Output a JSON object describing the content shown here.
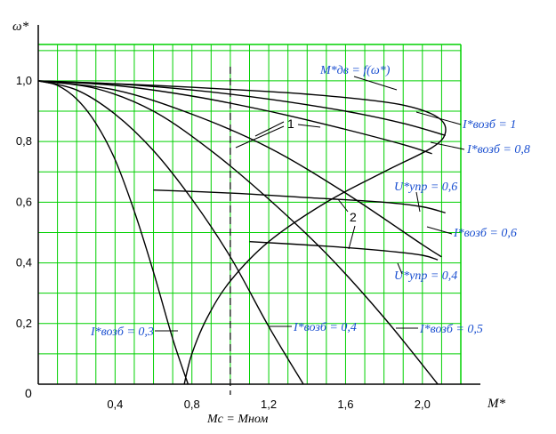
{
  "chart_data": {
    "type": "line",
    "x_ticks": [
      "0,4",
      "0,8",
      "1,2",
      "1,6",
      "2,0"
    ],
    "y_ticks": [
      "0,2",
      "0,4",
      "0,6",
      "0,8",
      "1,0"
    ],
    "origin_label": "0",
    "xlabel": "M*",
    "ylabel": "ω*",
    "xlim": [
      0,
      2.2
    ],
    "ylim": [
      0,
      1.12
    ],
    "grid": true,
    "grid_color": "#00d000",
    "vline": {
      "x": 1.0,
      "label": "Mc = Mном"
    },
    "series": [
      {
        "name": "I*возб = 0,3",
        "label": "I*возб = 0,3",
        "color": "#000000",
        "points": [
          [
            0,
            1.0
          ],
          [
            0.1,
            0.985
          ],
          [
            0.2,
            0.94
          ],
          [
            0.3,
            0.86
          ],
          [
            0.4,
            0.74
          ],
          [
            0.5,
            0.57
          ],
          [
            0.6,
            0.37
          ],
          [
            0.7,
            0.15
          ],
          [
            0.78,
            0.0
          ]
        ]
      },
      {
        "name": "I*возб = 0,4",
        "label": "I*возб = 0,4",
        "color": "#000000",
        "points": [
          [
            0,
            1.0
          ],
          [
            0.2,
            0.97
          ],
          [
            0.4,
            0.89
          ],
          [
            0.6,
            0.77
          ],
          [
            0.8,
            0.61
          ],
          [
            1.0,
            0.42
          ],
          [
            1.2,
            0.19
          ],
          [
            1.38,
            0.0
          ]
        ]
      },
      {
        "name": "I*возб = 0,5",
        "label": "I*возб = 0,5",
        "color": "#000000",
        "points": [
          [
            0,
            1.0
          ],
          [
            0.3,
            0.975
          ],
          [
            0.6,
            0.9
          ],
          [
            0.9,
            0.77
          ],
          [
            1.2,
            0.61
          ],
          [
            1.5,
            0.43
          ],
          [
            1.8,
            0.22
          ],
          [
            2.08,
            0.0
          ]
        ]
      },
      {
        "name": "I*возб = 0,6",
        "label": "I*возб = 0,6",
        "color": "#000000",
        "points": [
          [
            0,
            1.0
          ],
          [
            0.4,
            0.97
          ],
          [
            0.8,
            0.89
          ],
          [
            1.2,
            0.78
          ],
          [
            1.6,
            0.63
          ],
          [
            2.0,
            0.46
          ],
          [
            2.1,
            0.42
          ]
        ]
      },
      {
        "name": "I*возб = 0,8",
        "label": "I*возб = 0,8",
        "color": "#000000",
        "points": [
          [
            0,
            1.0
          ],
          [
            0.4,
            0.985
          ],
          [
            0.8,
            0.95
          ],
          [
            1.2,
            0.9
          ],
          [
            1.6,
            0.84
          ],
          [
            1.9,
            0.79
          ],
          [
            2.05,
            0.76
          ]
        ]
      },
      {
        "name": "I*возб = 1",
        "label": "I*возб = 1",
        "color": "#000000",
        "points": [
          [
            0,
            1.0
          ],
          [
            0.4,
            0.99
          ],
          [
            0.8,
            0.97
          ],
          [
            1.2,
            0.94
          ],
          [
            1.6,
            0.9
          ],
          [
            1.9,
            0.86
          ],
          [
            2.12,
            0.82
          ]
        ]
      },
      {
        "name": "M*дв = f(ω*)",
        "label": "M*дв = f(ω*)",
        "color": "#000000",
        "points": [
          [
            0.0,
            1.0
          ],
          [
            0.6,
            0.985
          ],
          [
            1.2,
            0.965
          ],
          [
            1.6,
            0.945
          ],
          [
            1.9,
            0.92
          ],
          [
            2.08,
            0.88
          ],
          [
            2.12,
            0.83
          ],
          [
            2.05,
            0.78
          ],
          [
            1.8,
            0.7
          ],
          [
            1.5,
            0.6
          ],
          [
            1.2,
            0.47
          ],
          [
            1.0,
            0.34
          ],
          [
            0.88,
            0.22
          ],
          [
            0.8,
            0.1
          ],
          [
            0.76,
            0.0
          ]
        ]
      },
      {
        "name": "U*упр = 0,6",
        "label": "U*упр = 0,6",
        "color": "#000000",
        "points": [
          [
            0.6,
            0.64
          ],
          [
            1.0,
            0.63
          ],
          [
            1.4,
            0.615
          ],
          [
            1.8,
            0.6
          ],
          [
            2.0,
            0.585
          ],
          [
            2.12,
            0.565
          ]
        ]
      },
      {
        "name": "U*упр = 0,4",
        "label": "U*упр = 0,4",
        "color": "#000000",
        "points": [
          [
            1.1,
            0.47
          ],
          [
            1.5,
            0.455
          ],
          [
            1.8,
            0.44
          ],
          [
            2.0,
            0.425
          ],
          [
            2.08,
            0.41
          ]
        ]
      }
    ],
    "annotations": [
      {
        "text": "1"
      },
      {
        "text": "2"
      }
    ]
  }
}
